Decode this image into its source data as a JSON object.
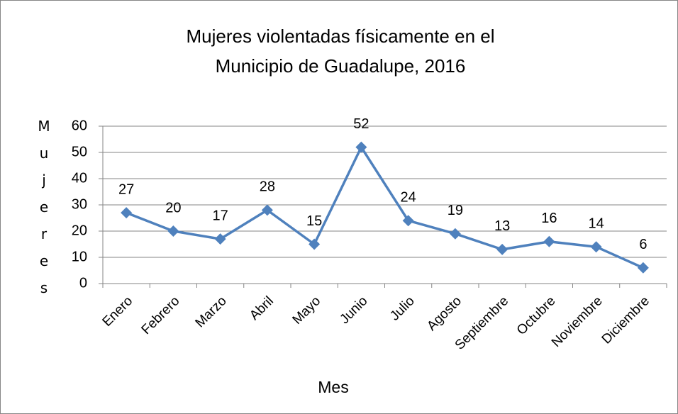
{
  "chart_data": {
    "type": "line",
    "title": "Mujeres violentadas físicamente en el Municipio de Guadalupe, 2016",
    "xlabel": "Mes",
    "ylabel": "Mujeres",
    "categories": [
      "Enero",
      "Febrero",
      "Marzo",
      "Abril",
      "Mayo",
      "Junio",
      "Julio",
      "Agosto",
      "Septiembre",
      "Octubre",
      "Noviembre",
      "Diciembre"
    ],
    "values": [
      27,
      20,
      17,
      28,
      15,
      52,
      24,
      19,
      13,
      16,
      14,
      6
    ],
    "color": "#4f81bd",
    "ylim": [
      0,
      60
    ],
    "yticks": [
      0,
      10,
      20,
      30,
      40,
      50,
      60
    ],
    "grid": true
  }
}
